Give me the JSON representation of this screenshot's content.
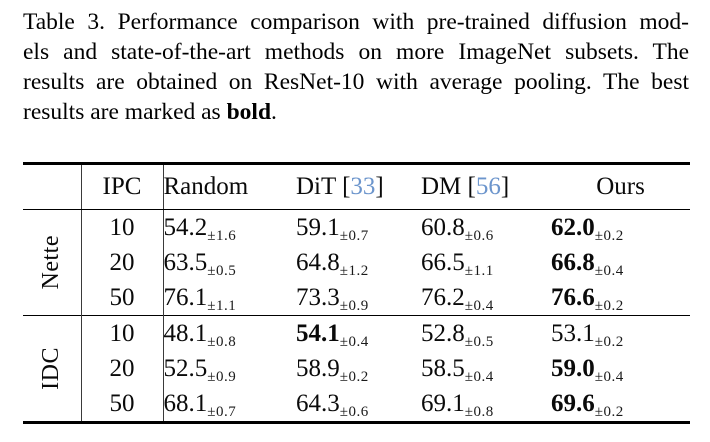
{
  "caption": {
    "lines": [
      "Table 3. Performance comparison with pre-trained diffusion mod-",
      "els and state-of-the-art methods on more ImageNet subsets. The",
      "results are obtained on ResNet-10 with average pooling. The best"
    ],
    "last_line": {
      "prefix": "results are marked as ",
      "bold": "bold",
      "suffix": "."
    }
  },
  "table": {
    "header": {
      "ipc": "IPC",
      "columns": [
        {
          "name": "Random",
          "lb": null,
          "cite": null,
          "rb": null
        },
        {
          "name": "DiT ",
          "lb": "[",
          "cite": "33",
          "rb": "]"
        },
        {
          "name": "DM ",
          "lb": "[",
          "cite": "56",
          "rb": "]"
        },
        {
          "name": "Ours",
          "lb": null,
          "cite": null,
          "rb": null
        }
      ]
    },
    "groups": [
      {
        "label": "Nette",
        "rows": [
          {
            "ipc": "10",
            "cells": [
              {
                "v": "54.2",
                "e": "±1.6",
                "bold": false
              },
              {
                "v": "59.1",
                "e": "±0.7",
                "bold": false
              },
              {
                "v": "60.8",
                "e": "±0.6",
                "bold": false
              },
              {
                "v": "62.0",
                "e": "±0.2",
                "bold": true
              }
            ]
          },
          {
            "ipc": "20",
            "cells": [
              {
                "v": "63.5",
                "e": "±0.5",
                "bold": false
              },
              {
                "v": "64.8",
                "e": "±1.2",
                "bold": false
              },
              {
                "v": "66.5",
                "e": "±1.1",
                "bold": false
              },
              {
                "v": "66.8",
                "e": "±0.4",
                "bold": true
              }
            ]
          },
          {
            "ipc": "50",
            "cells": [
              {
                "v": "76.1",
                "e": "±1.1",
                "bold": false
              },
              {
                "v": "73.3",
                "e": "±0.9",
                "bold": false
              },
              {
                "v": "76.2",
                "e": "±0.4",
                "bold": false
              },
              {
                "v": "76.6",
                "e": "±0.2",
                "bold": true
              }
            ]
          }
        ]
      },
      {
        "label": "IDC",
        "rows": [
          {
            "ipc": "10",
            "cells": [
              {
                "v": "48.1",
                "e": "±0.8",
                "bold": false
              },
              {
                "v": "54.1",
                "e": "±0.4",
                "bold": true
              },
              {
                "v": "52.8",
                "e": "±0.5",
                "bold": false
              },
              {
                "v": "53.1",
                "e": "±0.2",
                "bold": false
              }
            ]
          },
          {
            "ipc": "20",
            "cells": [
              {
                "v": "52.5",
                "e": "±0.9",
                "bold": false
              },
              {
                "v": "58.9",
                "e": "±0.2",
                "bold": false
              },
              {
                "v": "58.5",
                "e": "±0.4",
                "bold": false
              },
              {
                "v": "59.0",
                "e": "±0.4",
                "bold": true
              }
            ]
          },
          {
            "ipc": "50",
            "cells": [
              {
                "v": "68.1",
                "e": "±0.7",
                "bold": false
              },
              {
                "v": "64.3",
                "e": "±0.6",
                "bold": false
              },
              {
                "v": "69.1",
                "e": "±0.8",
                "bold": false
              },
              {
                "v": "69.6",
                "e": "±0.2",
                "bold": true
              }
            ]
          }
        ]
      }
    ],
    "colors": {
      "citation_blue": "#6c95cc",
      "text": "#0a0a0a",
      "rule": "#000000"
    }
  }
}
